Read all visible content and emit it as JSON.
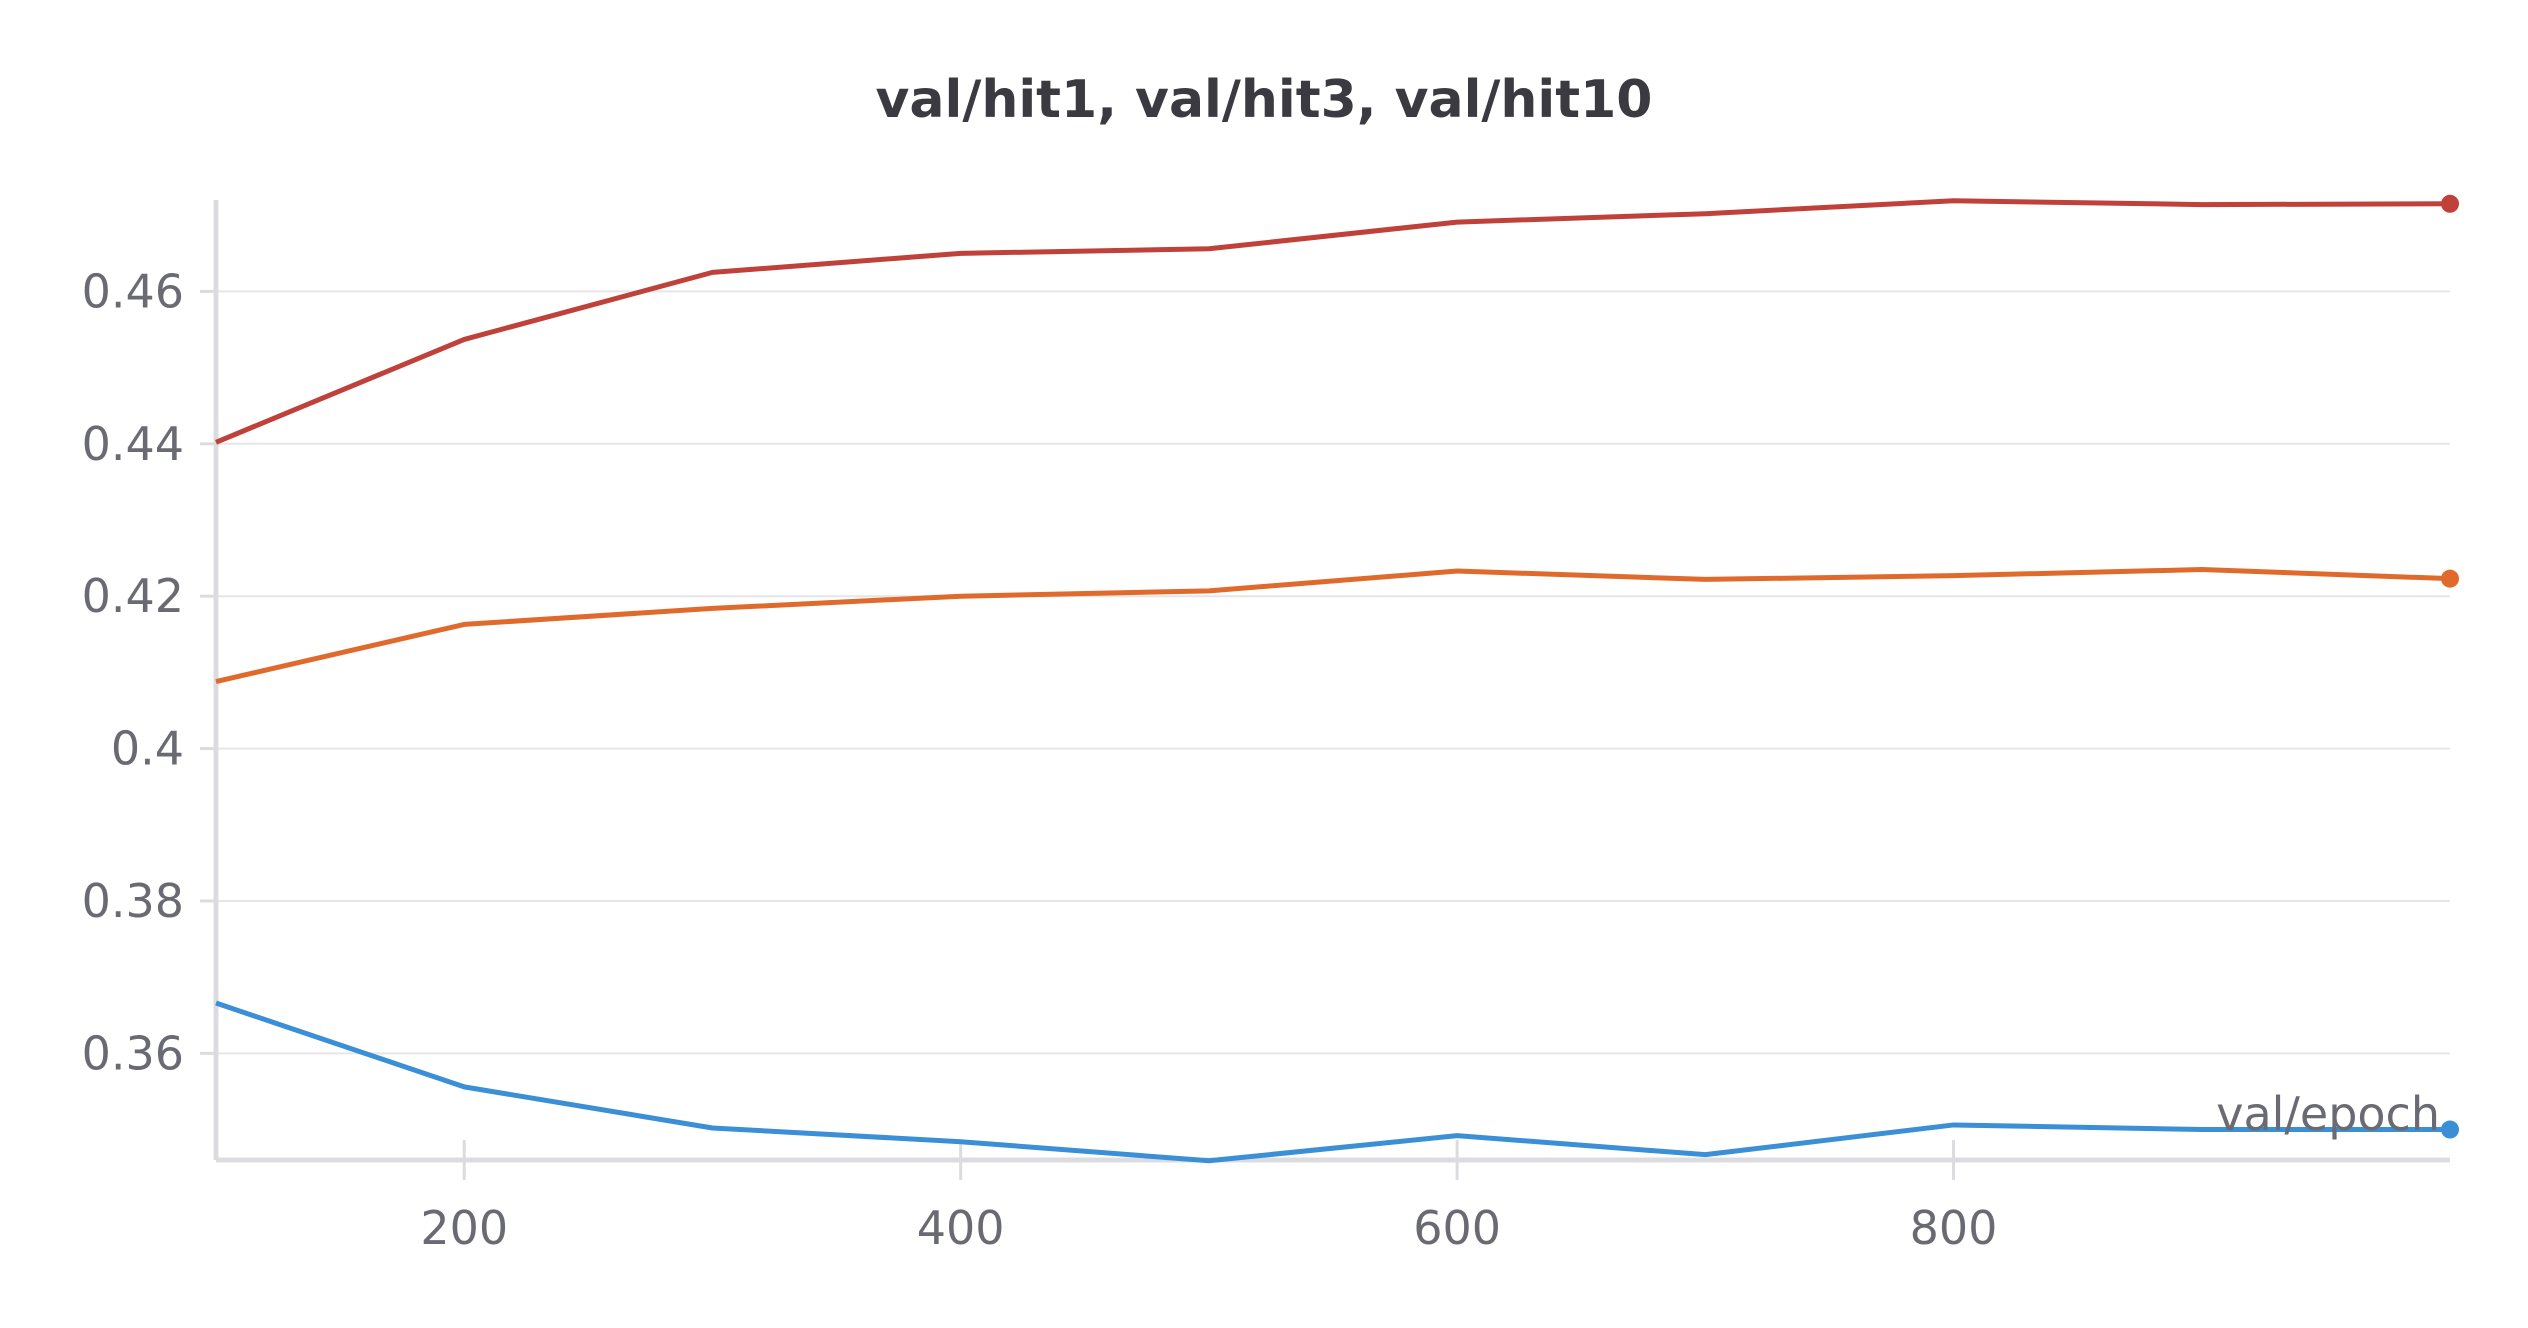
{
  "chart_data": {
    "type": "line",
    "title": "val/hit1, val/hit3, val/hit10",
    "xlabel": "val/epoch",
    "ylabel": "",
    "xlim": [
      100,
      1000
    ],
    "ylim": [
      0.346,
      0.472
    ],
    "x_ticks": [
      "200",
      "400",
      "600",
      "800"
    ],
    "y_ticks": [
      "0.36",
      "0.38",
      "0.4",
      "0.42",
      "0.44",
      "0.46"
    ],
    "grid": true,
    "x": [
      100,
      200,
      300,
      400,
      500,
      600,
      700,
      800,
      900,
      1000
    ],
    "series": [
      {
        "color": "#c0403a",
        "values": [
          0.4402,
          0.4537,
          0.4625,
          0.465,
          0.4656,
          0.4691,
          0.4702,
          0.4719,
          0.4714,
          0.4715
        ]
      },
      {
        "color": "#e06a2c",
        "values": [
          0.4088,
          0.4163,
          0.4184,
          0.42,
          0.4207,
          0.4233,
          0.4222,
          0.4227,
          0.4235,
          0.4223
        ]
      },
      {
        "color": "#3a8fd6",
        "values": [
          0.3666,
          0.3556,
          0.3502,
          0.3484,
          0.3459,
          0.3492,
          0.3467,
          0.3506,
          0.35,
          0.35
        ]
      }
    ]
  }
}
